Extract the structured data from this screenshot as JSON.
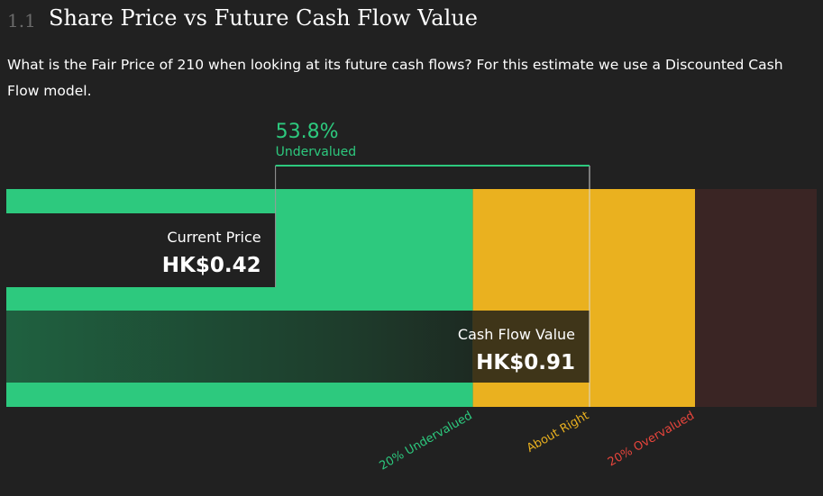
{
  "section": {
    "number": "1.1",
    "title": "Share Price vs Future Cash Flow Value"
  },
  "description": "What is the Fair Price of 210 when looking at its future cash flows? For this estimate we use a Discounted Cash Flow model.",
  "chart_data": {
    "type": "bar",
    "currency": "HK$",
    "current_price": {
      "label": "Current Price",
      "value": 0.42,
      "display": "HK$0.42"
    },
    "cash_flow_value": {
      "label": "Cash Flow Value",
      "value": 0.91,
      "display": "HK$0.91"
    },
    "difference": {
      "percent": "53.8%",
      "label": "Undervalued",
      "value": 53.8
    },
    "zones": [
      {
        "label": "20% Undervalued",
        "color": "#2dc97e",
        "to_fraction_of_value": 0.8
      },
      {
        "label": "About Right",
        "color": "#eab11f",
        "from_fraction_of_value": 0.8,
        "to_fraction_of_value": 1.2
      },
      {
        "label": "20% Overvalued",
        "color": "#3a2524",
        "label_color": "#e8453c",
        "from_fraction_of_value": 1.2
      }
    ],
    "colors": {
      "accent": "#2dc97e",
      "about_right": "#eab11f",
      "overvalued_text": "#e8453c",
      "background": "#212121"
    }
  }
}
